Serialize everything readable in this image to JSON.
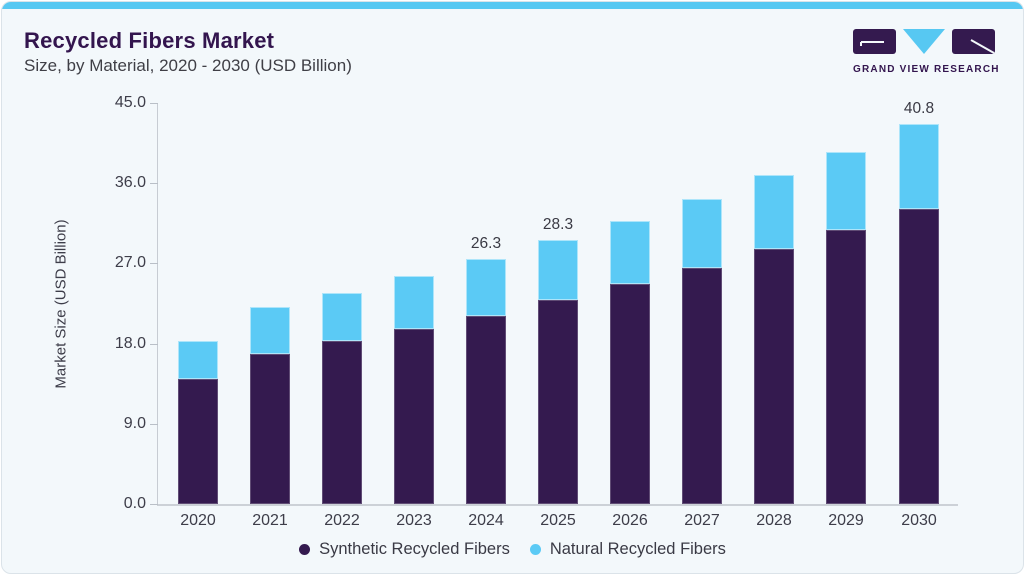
{
  "header": {
    "title": "Recycled Fibers Market",
    "subtitle": "Size, by Material, 2020 - 2030 (USD Billion)",
    "logo_text": "GRAND VIEW RESEARCH"
  },
  "colors": {
    "accent_blue": "#57c8f2",
    "synthetic_purple": "#341a4f",
    "natural_blue": "#5bcaf5",
    "card_bg": "#f3f8fb",
    "title_purple": "#33154e",
    "axis_text": "#3d3d49"
  },
  "chart_data": {
    "type": "bar",
    "stacked": true,
    "title": "Recycled Fibers Market Size, by Material, 2020 - 2030 (USD Billion)",
    "categories": [
      "2020",
      "2021",
      "2022",
      "2023",
      "2024",
      "2025",
      "2026",
      "2027",
      "2028",
      "2029",
      "2030"
    ],
    "series": [
      {
        "name": "Synthetic Recycled Fibers",
        "color": "#341a4f",
        "values": [
          13.4,
          16.1,
          17.5,
          18.8,
          20.2,
          21.9,
          23.6,
          25.3,
          27.4,
          29.4,
          31.7
        ]
      },
      {
        "name": "Natural Recycled Fibers",
        "color": "#5bcaf5",
        "values": [
          4.1,
          5.0,
          5.2,
          5.7,
          6.1,
          6.4,
          6.8,
          7.4,
          7.9,
          8.4,
          9.1
        ]
      }
    ],
    "totals": [
      17.5,
      21.1,
      22.7,
      24.5,
      26.3,
      28.3,
      30.4,
      32.7,
      35.3,
      37.8,
      40.8
    ],
    "bar_labels": [
      "",
      "",
      "",
      "",
      "26.3",
      "28.3",
      "",
      "",
      "",
      "",
      "40.8"
    ],
    "ylabel": "Market Size (USD Billion)",
    "yticks": [
      "45.0",
      "36.0",
      "27.0",
      "18.0",
      "9.0",
      "0.0"
    ],
    "ylim": [
      0,
      45
    ],
    "grid": false,
    "legend_position": "bottom"
  }
}
